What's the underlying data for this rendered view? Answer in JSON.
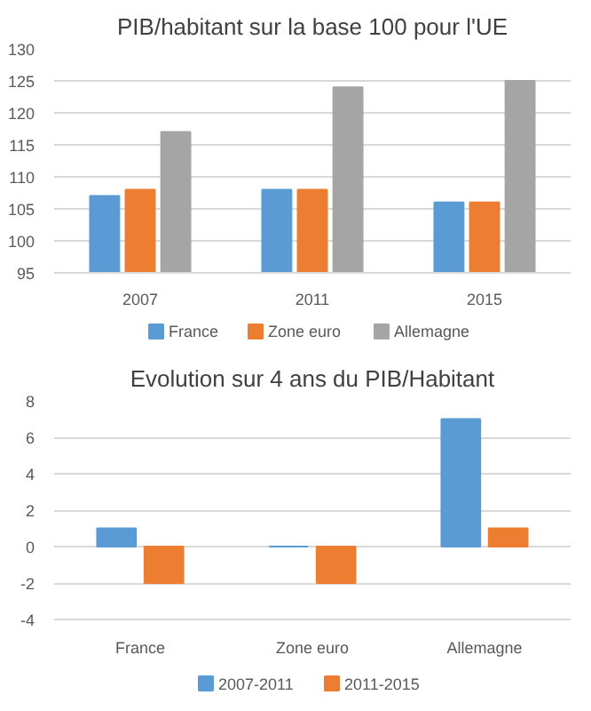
{
  "chart_data": [
    {
      "type": "bar",
      "title": "PIB/habitant sur la base 100 pour l'UE",
      "categories": [
        "2007",
        "2011",
        "2015"
      ],
      "series": [
        {
          "name": "France",
          "color": "#5b9bd5",
          "values": [
            107,
            108,
            106
          ]
        },
        {
          "name": "Zone euro",
          "color": "#ed7d31",
          "values": [
            108,
            108,
            106
          ]
        },
        {
          "name": "Allemagne",
          "color": "#a5a5a5",
          "values": [
            117,
            124,
            125
          ]
        }
      ],
      "ylim": [
        95,
        130
      ],
      "yticks": [
        95,
        100,
        105,
        110,
        115,
        120,
        125,
        130
      ],
      "grid": "y",
      "legend": "bottom"
    },
    {
      "type": "bar",
      "title": "Evolution sur 4 ans du PIB/Habitant",
      "categories": [
        "France",
        "Zone euro",
        "Allemagne"
      ],
      "series": [
        {
          "name": "2007-2011",
          "color": "#5b9bd5",
          "values": [
            1,
            0,
            7
          ]
        },
        {
          "name": "2011-2015",
          "color": "#ed7d31",
          "values": [
            -2,
            -2,
            1
          ]
        }
      ],
      "ylim": [
        -4,
        8
      ],
      "yticks": [
        -4,
        -2,
        0,
        2,
        4,
        6,
        8
      ],
      "grid": "y",
      "legend": "bottom"
    }
  ]
}
